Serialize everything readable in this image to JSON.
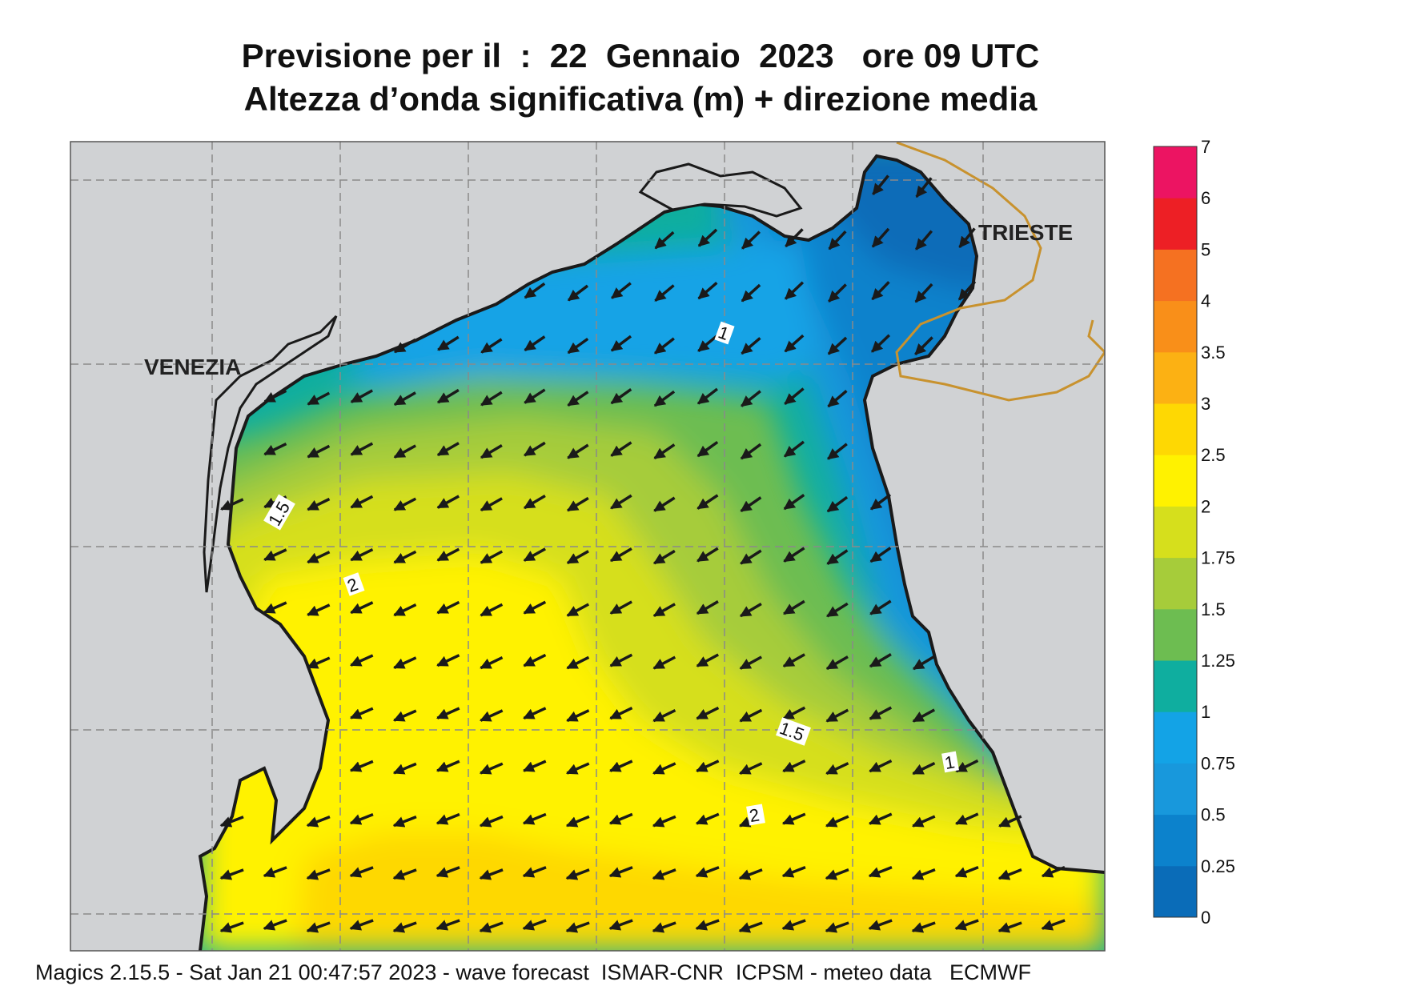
{
  "title": {
    "line1": "Previsione per il  :  22  Gennaio  2023   ore 09 UTC",
    "line2": "Altezza d’onda significativa (m) + direzione media"
  },
  "places": {
    "venezia": "VENEZIA",
    "trieste": "TRIESTE"
  },
  "contour_labels": [
    "1",
    "1.5",
    "2",
    "1.5",
    "1",
    "2"
  ],
  "colorbar": {
    "ticks": [
      "0",
      "0.25",
      "0.5",
      "0.75",
      "1",
      "1.25",
      "1.5",
      "1.75",
      "2",
      "2.5",
      "3",
      "3.5",
      "4",
      "5",
      "6",
      "7"
    ],
    "colors": [
      "#0a6cb8",
      "#0c82cc",
      "#1898dc",
      "#13a3e6",
      "#0fae9f",
      "#6dbd51",
      "#a6cc3a",
      "#d6df1c",
      "#fff200",
      "#fed803",
      "#fcb113",
      "#f98f19",
      "#f57121",
      "#ed1f25",
      "#ec1462"
    ]
  },
  "footer": "Magics 2.15.5 - Sat Jan 21 00:47:57 2023 - wave forecast  ISMAR-CNR  ICPSM - meteo data   ECMWF",
  "colors": {
    "land": "#d0d2d4",
    "coast": "#1a1a1a",
    "border": "#c8922e",
    "grid": "#8a8a8a"
  },
  "wave_direction": "towards south-west / west"
}
